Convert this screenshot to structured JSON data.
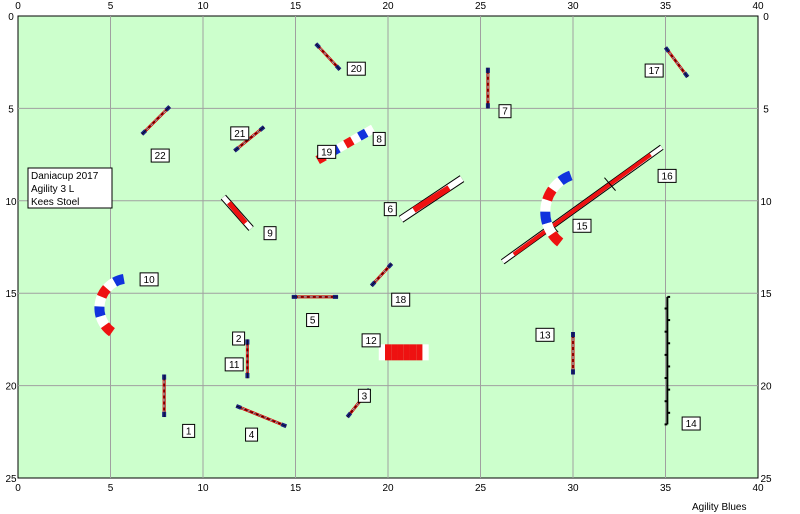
{
  "course": {
    "title_lines": [
      "Daniacup 2017",
      "Agility 3 L",
      "Kees Stoel"
    ],
    "footer": "Agility Blues",
    "grid_width_m": 40,
    "grid_height_m": 25,
    "x_ticks": [
      "0",
      "5",
      "10",
      "15",
      "20",
      "25",
      "30",
      "35",
      "40"
    ],
    "y_ticks": [
      "0",
      "5",
      "10",
      "15",
      "20",
      "25"
    ],
    "field_color": "#ccffcc",
    "grid_color": "#a0a0a0"
  },
  "obstacles": [
    {
      "num": "1",
      "type": "jump"
    },
    {
      "num": "2",
      "type": "jump"
    },
    {
      "num": "3",
      "type": "jump"
    },
    {
      "num": "4",
      "type": "jump"
    },
    {
      "num": "5",
      "type": "jump"
    },
    {
      "num": "6",
      "type": "seesaw"
    },
    {
      "num": "7",
      "type": "jump"
    },
    {
      "num": "8",
      "type": "tunnel"
    },
    {
      "num": "9",
      "type": "table"
    },
    {
      "num": "10",
      "type": "tunnel"
    },
    {
      "num": "11",
      "type": "jump"
    },
    {
      "num": "12",
      "type": "tunnel"
    },
    {
      "num": "13",
      "type": "jump"
    },
    {
      "num": "14",
      "type": "weave-poles"
    },
    {
      "num": "15",
      "type": "tunnel"
    },
    {
      "num": "16",
      "type": "jump"
    },
    {
      "num": "17",
      "type": "dogwalk"
    },
    {
      "num": "18",
      "type": "jump"
    },
    {
      "num": "19",
      "type": "tunnel"
    },
    {
      "num": "20",
      "type": "jump"
    },
    {
      "num": "21",
      "type": "jump"
    },
    {
      "num": "22",
      "type": "jump"
    }
  ]
}
